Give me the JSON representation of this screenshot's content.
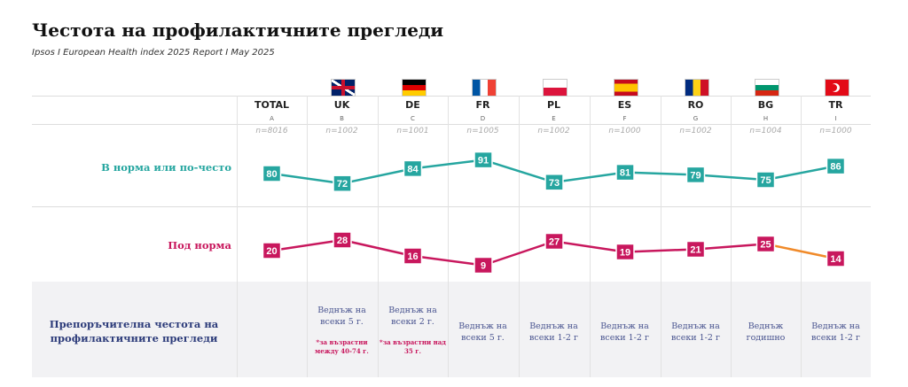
{
  "title": "Честота на профилактичните прегледи",
  "subtitle": "Ipsos I European Health index 2025 Report I May 2025",
  "chart_data": {
    "type": "line",
    "categories": [
      "TOTAL",
      "UK",
      "DE",
      "FR",
      "PL",
      "ES",
      "RO",
      "BG",
      "TR"
    ],
    "letters": [
      "A",
      "B",
      "C",
      "D",
      "E",
      "F",
      "G",
      "H",
      "I"
    ],
    "sample_sizes": [
      "n=8016",
      "n=1002",
      "n=1001",
      "n=1005",
      "n=1002",
      "n=1000",
      "n=1002",
      "n=1004",
      "n=1000"
    ],
    "series": [
      {
        "name": "В норма или по-често",
        "values": [
          80,
          72,
          84,
          91,
          73,
          81,
          79,
          75,
          86
        ],
        "color": "#26a6a0"
      },
      {
        "name": "Под норма",
        "values": [
          20,
          28,
          16,
          9,
          27,
          19,
          21,
          25,
          14
        ],
        "color": "#c8175d",
        "highlight_segment_color": "#f08a2a"
      }
    ]
  },
  "footer": {
    "label": "Препоръчителна честота на профилактичните прегледи",
    "recommendations": [
      "",
      "Веднъж на всеки 5 г.",
      "Веднъж на всеки 2 г.",
      "Веднъж на всеки 5 г.",
      "Веднъж на всеки 1-2 г",
      "Веднъж на всеки 1-2 г",
      "Веднъж на всеки 1-2 г",
      "Веднъж годишно",
      "Веднъж на всеки 1-2 г"
    ],
    "notes": [
      "",
      "*за възрастни между 40-74 г.",
      "*за възрастни над 35 г.",
      "",
      "",
      "",
      "",
      "",
      ""
    ]
  }
}
